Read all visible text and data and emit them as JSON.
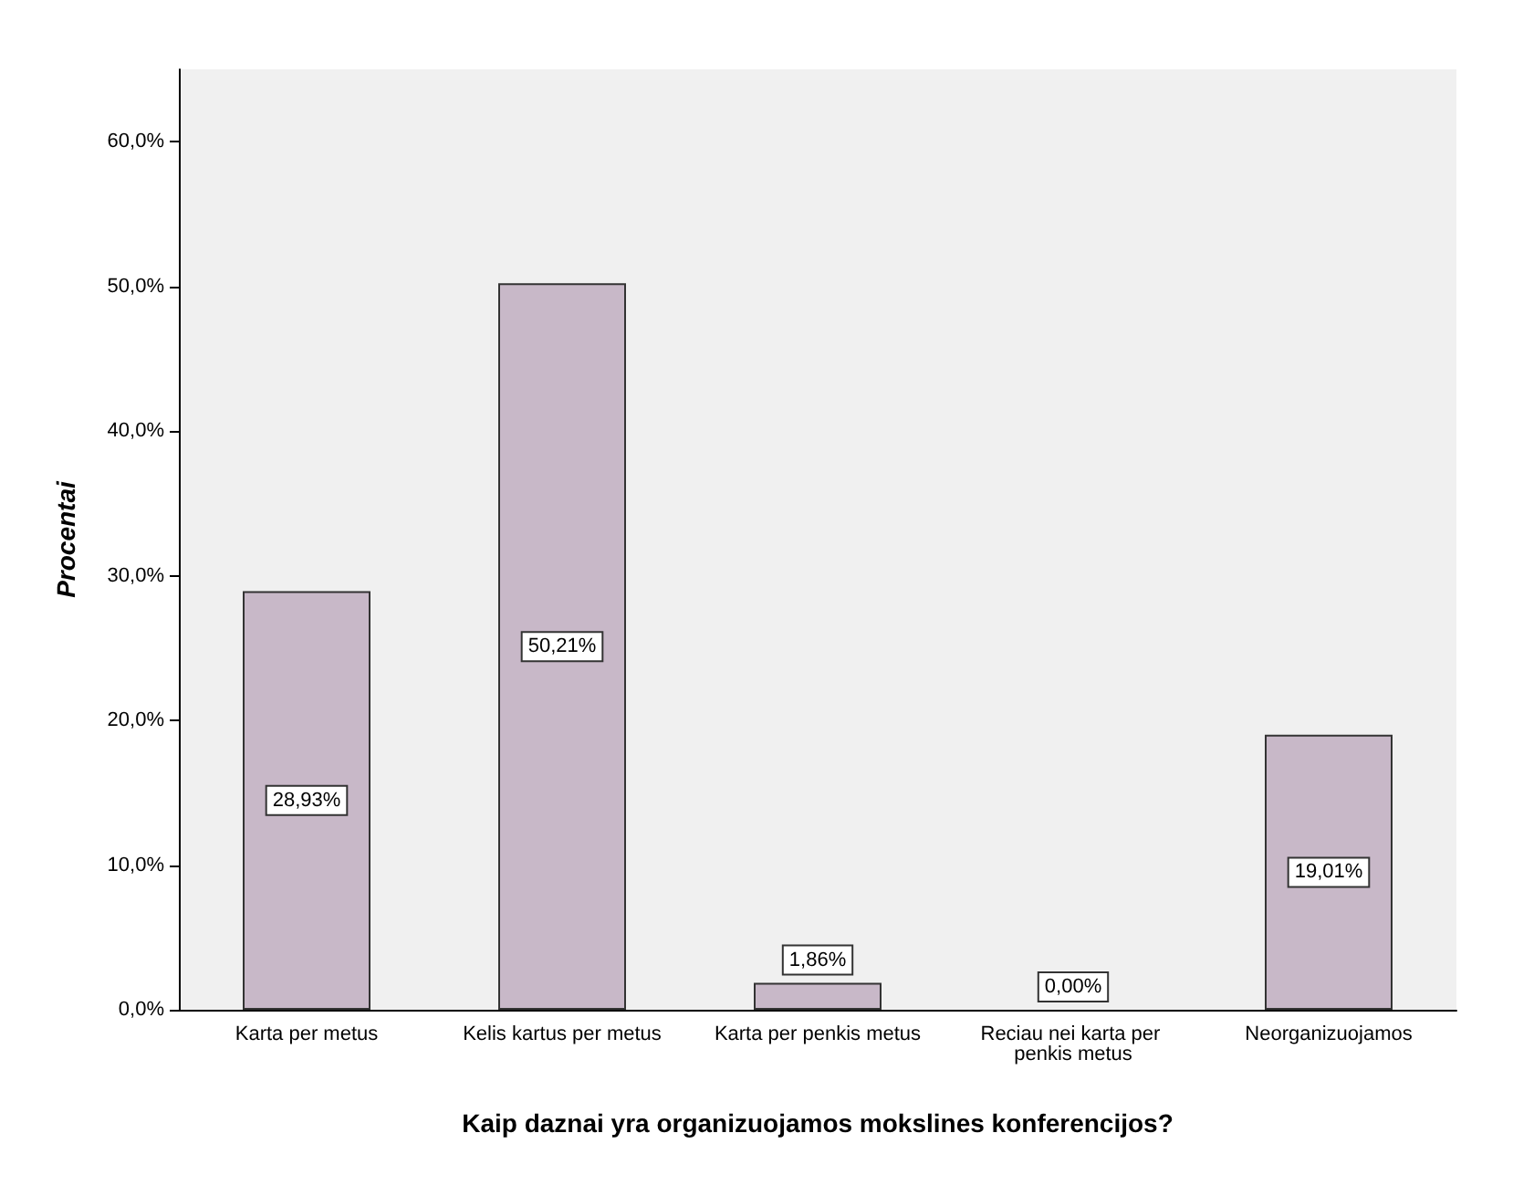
{
  "chart_data": {
    "type": "bar",
    "xlabel": "Kaip daznai yra organizuojamos mokslines konferencijos?",
    "ylabel": "Procentai",
    "categories": [
      "Karta per metus",
      "Kelis kartus per metus",
      "Karta per penkis metus",
      "Reciau nei karta per penkis metus",
      "Neorganizuojamos"
    ],
    "values": [
      28.93,
      50.21,
      1.86,
      0,
      19.01
    ],
    "value_labels": [
      "28,93%",
      "50,21%",
      "1,86%",
      "0,00%",
      "19,01%"
    ],
    "color": "#c8b8c8",
    "ylim": [
      0,
      65
    ],
    "yticks": [
      {
        "value": 0,
        "label": "0,0%"
      },
      {
        "value": 10,
        "label": "10,0%"
      },
      {
        "value": 20,
        "label": "20,0%"
      },
      {
        "value": 30,
        "label": "30,0%"
      },
      {
        "value": 40,
        "label": "40,0%"
      },
      {
        "value": 50,
        "label": "50,0%"
      },
      {
        "value": 60,
        "label": "60,0%"
      }
    ],
    "grid": false
  }
}
